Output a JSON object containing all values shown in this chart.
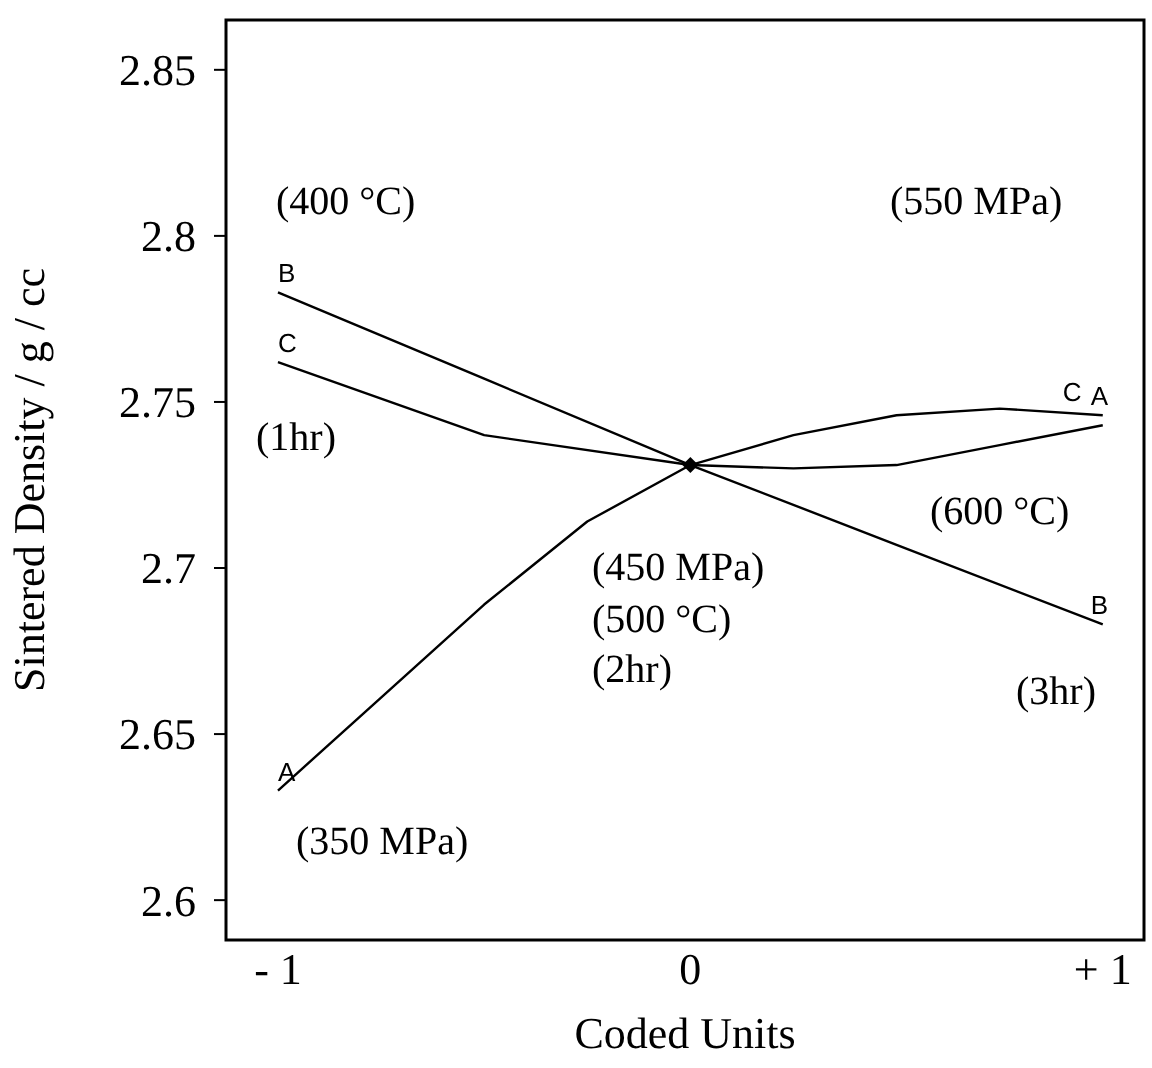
{
  "chart_data": {
    "type": "line",
    "xlabel": "Coded Units",
    "ylabel": "Sintered Density / g / cc",
    "xlim": [
      -1.126,
      1.1
    ],
    "ylim": [
      2.588,
      2.865
    ],
    "xticks": [
      {
        "value": -1,
        "label": "- 1"
      },
      0,
      {
        "value": 1,
        "label": "+ 1"
      }
    ],
    "yticks": [
      2.6,
      2.65,
      2.7,
      2.75,
      2.8,
      2.85
    ],
    "grid": false,
    "series": [
      {
        "name": "A",
        "color": "#000000",
        "x": [
          -1,
          -0.75,
          -0.5,
          -0.25,
          0,
          0.25,
          0.5,
          0.75,
          1
        ],
        "values": [
          2.633,
          2.661,
          2.689,
          2.714,
          2.731,
          2.74,
          2.746,
          2.748,
          2.746
        ]
      },
      {
        "name": "B",
        "color": "#000000",
        "x": [
          -1,
          -0.5,
          0,
          0.5,
          1
        ],
        "values": [
          2.783,
          2.757,
          2.731,
          2.707,
          2.683
        ]
      },
      {
        "name": "C",
        "color": "#000000",
        "x": [
          -1,
          -0.5,
          0,
          0.25,
          0.5,
          0.75,
          1
        ],
        "values": [
          2.762,
          2.74,
          2.731,
          2.73,
          2.731,
          2.737,
          2.743
        ]
      },
      {
        "type": "scatter",
        "color": "#000000",
        "x": [
          0
        ],
        "values": [
          2.731
        ],
        "marker": "diamond"
      }
    ],
    "annotations": [
      "(400 °C)",
      "(1hr)",
      "(350 MPa)",
      "(550 MPa)",
      "(600 °C)",
      "(450 MPa)",
      "(500 °C)",
      "(2hr)",
      "(3hr)"
    ]
  }
}
